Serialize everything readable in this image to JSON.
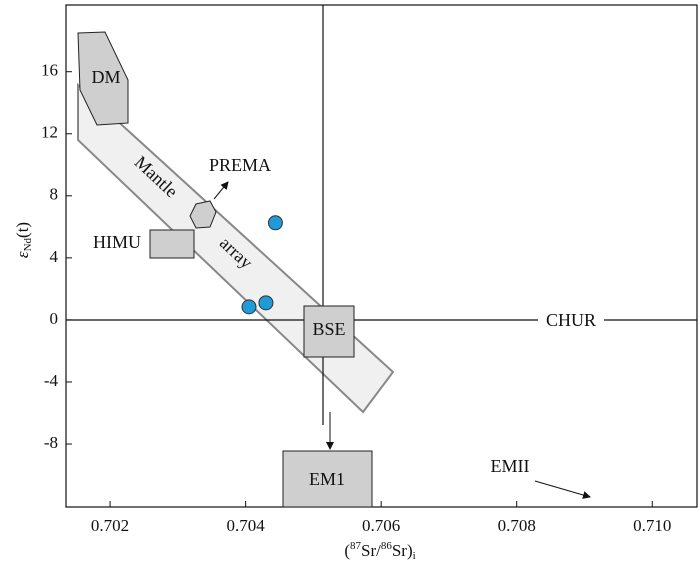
{
  "chart_data": {
    "type": "scatter",
    "x_label": {
      "open": "(",
      "sup1": "87",
      "mid": "Sr/",
      "sup2": "86",
      "close": "Sr)",
      "sub": "i"
    },
    "y_label": {
      "symbol": "ε",
      "subscript": "Nd",
      "suffix": "(t)"
    },
    "xlim": [
      0.70135,
      0.71066
    ],
    "ylim": [
      -12.06,
      20.3
    ],
    "xticks": [
      0.702,
      0.704,
      0.706,
      0.708,
      0.71
    ],
    "xtick_labels": [
      "0.702",
      "0.704",
      "0.706",
      "0.708",
      "0.710"
    ],
    "yticks": [
      -8,
      -4,
      0,
      4,
      8,
      12,
      16
    ],
    "series": [
      {
        "color": "#1f9bd7",
        "x": [
          0.70405,
          0.7043,
          0.70444
        ],
        "values": [
          0.84,
          1.1,
          6.26
        ]
      }
    ],
    "annotations": {
      "dm": "DM",
      "prema": "PREMA",
      "himu": "HIMU",
      "mantle": "Mantle",
      "array": "array",
      "bse": "BSE",
      "chur": "CHUR",
      "em1": "EM1",
      "emii": "EMII"
    }
  }
}
